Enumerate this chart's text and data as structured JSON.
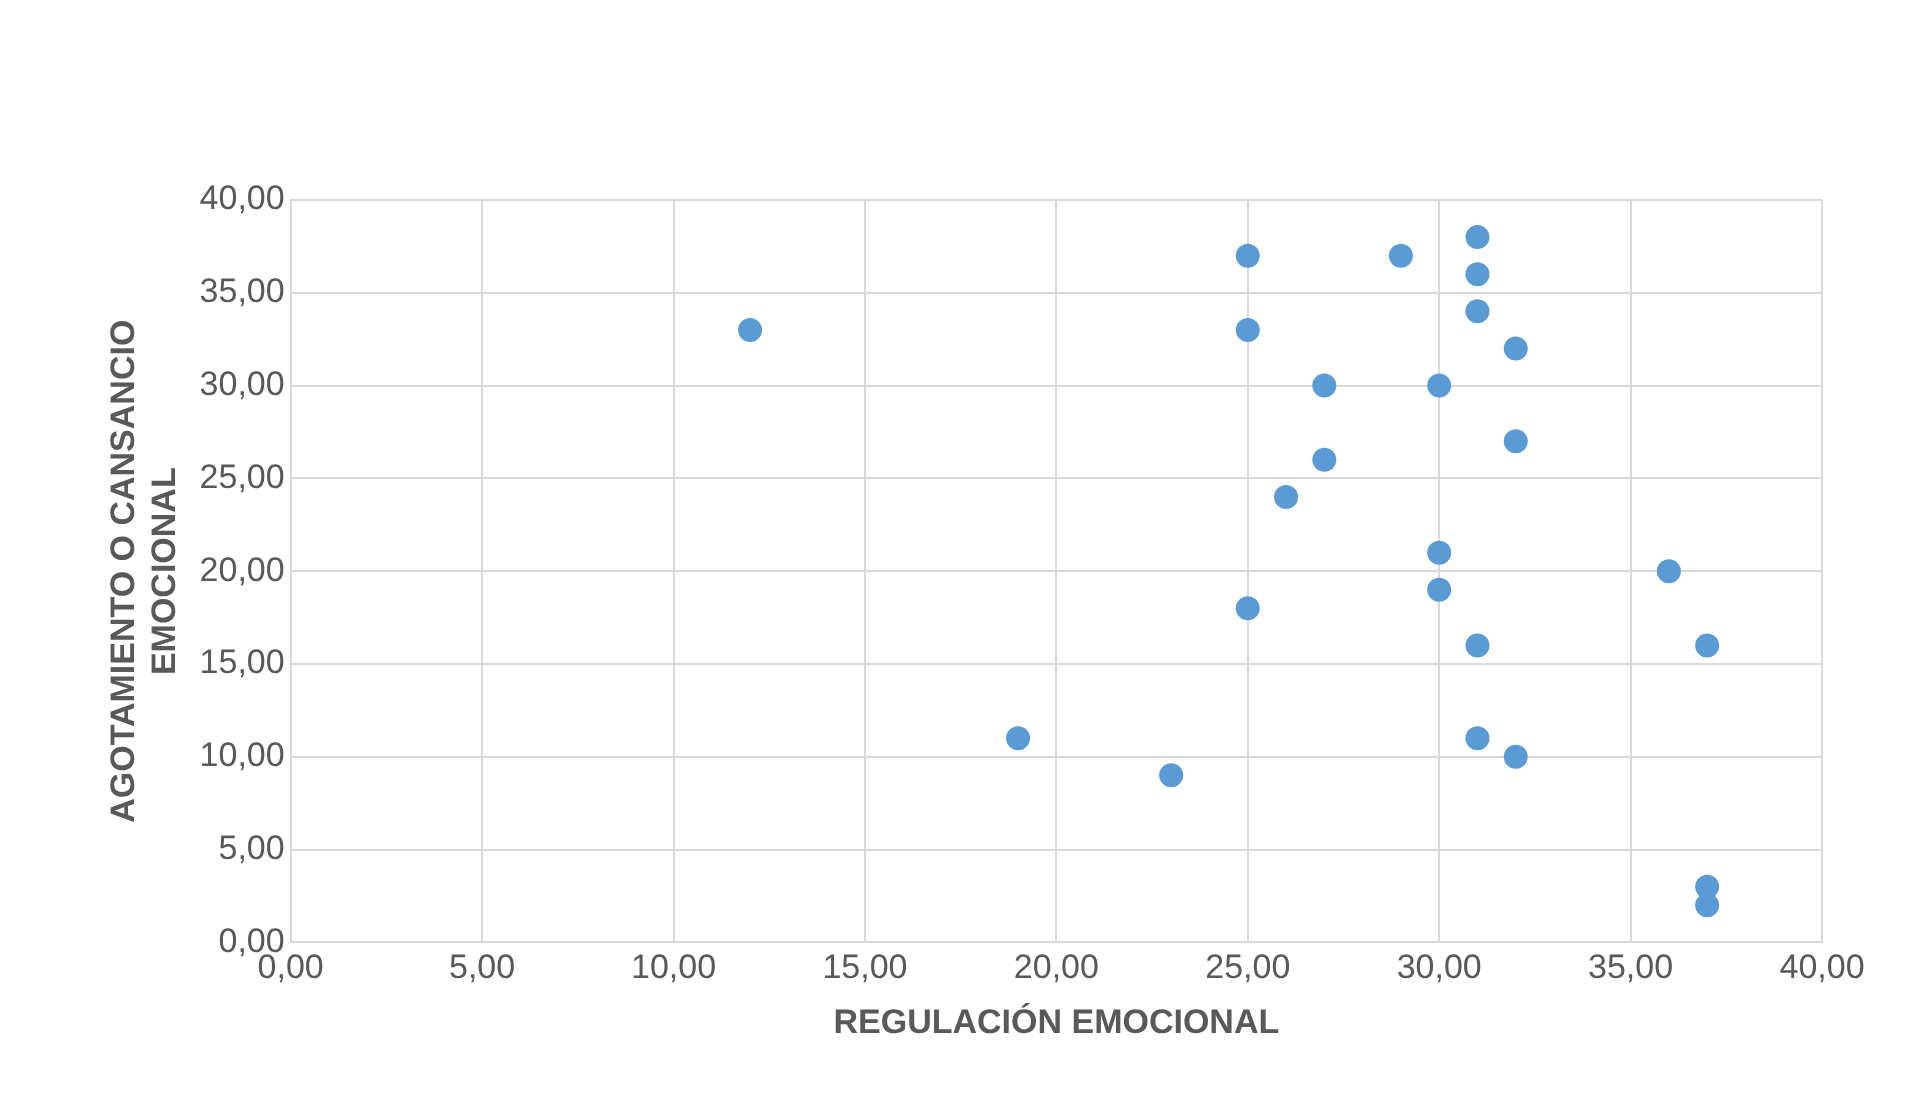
{
  "chart_data": {
    "type": "scatter",
    "xlabel": "REGULACIÓN EMOCIONAL",
    "ylabel": "AGOTAMIENTO O CANSANCIO\nEMOCIONAL",
    "x": [
      12,
      19,
      23,
      25,
      25,
      25,
      26,
      27,
      27,
      29,
      30,
      30,
      30,
      31,
      31,
      31,
      31,
      31,
      32,
      32,
      32,
      36,
      37,
      37,
      37
    ],
    "series": [
      {
        "color": "#5b9bd5",
        "values": [
          33,
          11,
          9,
          37,
          33,
          18,
          24,
          30,
          26,
          37,
          30,
          21,
          19,
          38,
          36,
          34,
          16,
          11,
          32,
          27,
          10,
          20,
          16,
          3,
          2
        ]
      }
    ],
    "xlim": [
      0,
      40
    ],
    "ylim": [
      0,
      40
    ],
    "xticks": [
      {
        "value": 0,
        "label": "0,00"
      },
      {
        "value": 5,
        "label": "5,00"
      },
      {
        "value": 10,
        "label": "10,00"
      },
      {
        "value": 15,
        "label": "15,00"
      },
      {
        "value": 20,
        "label": "20,00"
      },
      {
        "value": 25,
        "label": "25,00"
      },
      {
        "value": 30,
        "label": "30,00"
      },
      {
        "value": 35,
        "label": "35,00"
      },
      {
        "value": 40,
        "label": "40,00"
      }
    ],
    "yticks": [
      {
        "value": 0,
        "label": "0,00"
      },
      {
        "value": 5,
        "label": "5,00"
      },
      {
        "value": 10,
        "label": "10,00"
      },
      {
        "value": 15,
        "label": "15,00"
      },
      {
        "value": 20,
        "label": "20,00"
      },
      {
        "value": 25,
        "label": "25,00"
      },
      {
        "value": 30,
        "label": "30,00"
      },
      {
        "value": 35,
        "label": "35,00"
      },
      {
        "value": 40,
        "label": "40,00"
      }
    ],
    "grid": true,
    "legend": false,
    "marker": "circle"
  }
}
